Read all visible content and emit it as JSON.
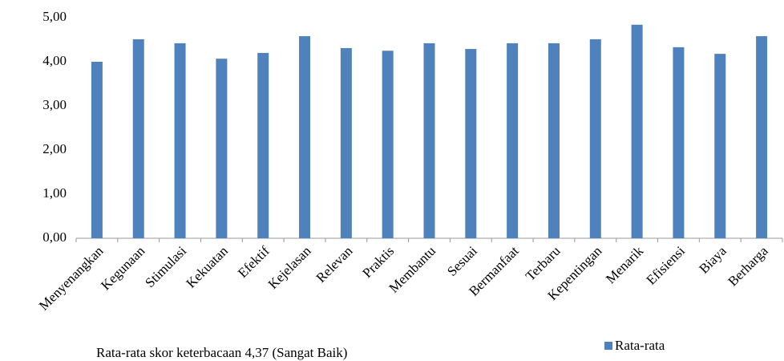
{
  "chart_data": {
    "type": "bar",
    "categories": [
      "Menyenangkan",
      "Kegunaan",
      "Stimulasi",
      "Kekuatan",
      "Efektif",
      "Kejelasan",
      "Relevan",
      "Praktis",
      "Membantu",
      "Sesuai",
      "Bermanfaat",
      "Terbaru",
      "Kepentingan",
      "Menarik",
      "Efisiensi",
      "Biaya",
      "Berharga"
    ],
    "series": [
      {
        "name": "Rata-rata",
        "color": "#4f81bd",
        "values": [
          4.0,
          4.51,
          4.42,
          4.07,
          4.2,
          4.58,
          4.31,
          4.25,
          4.42,
          4.29,
          4.42,
          4.42,
          4.51,
          4.84,
          4.33,
          4.18,
          4.58
        ]
      }
    ],
    "ylim": [
      0,
      5
    ],
    "yticks": [
      {
        "value": 0,
        "label": "0,00"
      },
      {
        "value": 1,
        "label": "1,00"
      },
      {
        "value": 2,
        "label": "2,00"
      },
      {
        "value": 3,
        "label": "3,00"
      },
      {
        "value": 4,
        "label": "4,00"
      },
      {
        "value": 5,
        "label": "5,00"
      }
    ],
    "annotation": "Rata-rata skor keterbacaan 4,37 (Sangat Baik)",
    "grid": false,
    "legend": "bottom-right"
  }
}
